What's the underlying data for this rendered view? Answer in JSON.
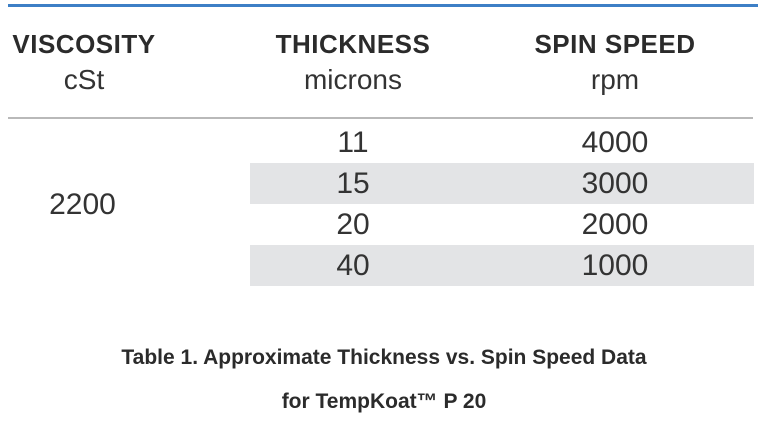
{
  "table": {
    "columns": [
      {
        "title": "VISCOSITY",
        "unit": "cSt"
      },
      {
        "title": "THICKNESS",
        "unit": "microns"
      },
      {
        "title": "SPIN SPEED",
        "unit": "rpm"
      }
    ],
    "viscosity": "2200",
    "rows": [
      {
        "thickness": "11",
        "spin_speed": "4000",
        "shaded": false
      },
      {
        "thickness": "15",
        "spin_speed": "3000",
        "shaded": true
      },
      {
        "thickness": "20",
        "spin_speed": "2000",
        "shaded": false
      },
      {
        "thickness": "40",
        "spin_speed": "1000",
        "shaded": true
      }
    ]
  },
  "caption": {
    "line1": "Table 1. Approximate Thickness vs. Spin Speed Data",
    "line2": "for TempKoat™ P 20"
  },
  "colors": {
    "accent_rule": "#3d7fc6",
    "row_shade": "#e3e4e6",
    "header_rule": "#b9b9b9"
  }
}
